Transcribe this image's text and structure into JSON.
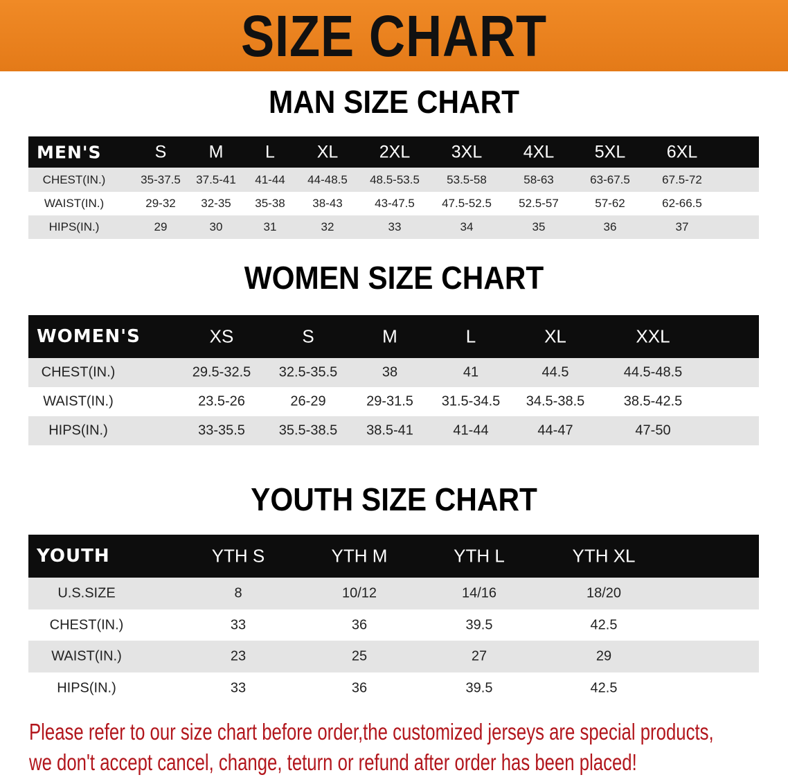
{
  "banner_title": "SIZE CHART",
  "colors": {
    "banner": "#e8801f",
    "header_row": "#0d0d0d",
    "stripe": "#e4e4e4",
    "note_text": "#b2161c"
  },
  "men": {
    "title": "MAN SIZE CHART",
    "header": [
      "MEN'S",
      "S",
      "M",
      "L",
      "XL",
      "2XL",
      "3XL",
      "4XL",
      "5XL",
      "6XL"
    ],
    "rows": [
      [
        "CHEST(IN.)",
        "35-37.5",
        "37.5-41",
        "41-44",
        "44-48.5",
        "48.5-53.5",
        "53.5-58",
        "58-63",
        "63-67.5",
        "67.5-72"
      ],
      [
        "WAIST(IN.)",
        "29-32",
        "32-35",
        "35-38",
        "38-43",
        "43-47.5",
        "47.5-52.5",
        "52.5-57",
        "57-62",
        "62-66.5"
      ],
      [
        "HIPS(IN.)",
        "29",
        "30",
        "31",
        "32",
        "33",
        "34",
        "35",
        "36",
        "37"
      ]
    ]
  },
  "women": {
    "title": "WOMEN SIZE CHART",
    "header": [
      "WOMEN'S",
      "XS",
      "S",
      "M",
      "L",
      "XL",
      "XXL"
    ],
    "rows": [
      [
        "CHEST(IN.)",
        "29.5-32.5",
        "32.5-35.5",
        "38",
        "41",
        "44.5",
        "44.5-48.5"
      ],
      [
        "WAIST(IN.)",
        "23.5-26",
        "26-29",
        "29-31.5",
        "31.5-34.5",
        "34.5-38.5",
        "38.5-42.5"
      ],
      [
        "HIPS(IN.)",
        "33-35.5",
        "35.5-38.5",
        "38.5-41",
        "41-44",
        "44-47",
        "47-50"
      ]
    ]
  },
  "youth": {
    "title": "YOUTH SIZE CHART",
    "header": [
      "YOUTH",
      "YTH S",
      "YTH M",
      "YTH L",
      "YTH XL"
    ],
    "rows": [
      [
        "U.S.SIZE",
        "8",
        "10/12",
        "14/16",
        "18/20"
      ],
      [
        "CHEST(IN.)",
        "33",
        "36",
        "39.5",
        "42.5"
      ],
      [
        "WAIST(IN.)",
        "23",
        "25",
        "27",
        "29"
      ],
      [
        "HIPS(IN.)",
        "33",
        "36",
        "39.5",
        "42.5"
      ]
    ]
  },
  "note": {
    "line1": "Please refer to our size chart before order,the customized jerseys are special products,",
    "line2": "we don't accept cancel, change, teturn or refund after order has been placed!"
  }
}
